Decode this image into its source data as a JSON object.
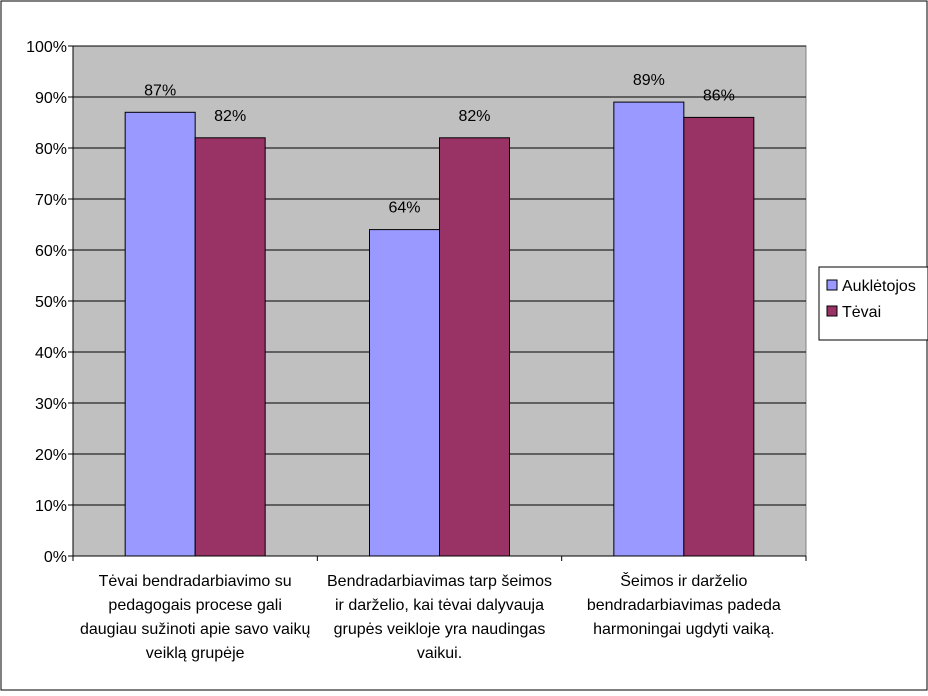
{
  "chart_data": {
    "type": "bar",
    "title": "",
    "xlabel": "",
    "ylabel": "",
    "ylim": [
      0,
      100
    ],
    "y_ticks": [
      "0%",
      "10%",
      "20%",
      "30%",
      "40%",
      "50%",
      "60%",
      "70%",
      "80%",
      "90%",
      "100%"
    ],
    "grid": true,
    "legend_position": "right",
    "categories": [
      [
        "Tėvai bendradarbiavimo su",
        "pedagogais procese gali",
        "daugiau sužinoti apie savo vaikų",
        "veiklą grupėje"
      ],
      [
        "Bendradarbiavimas tarp šeimos",
        "ir darželio, kai tėvai dalyvauja",
        "grupės veikloje yra naudingas",
        "vaikui."
      ],
      [
        "Šeimos ir darželio",
        "bendradarbiavimas padeda",
        "harmoningai ugdyti vaiką."
      ]
    ],
    "series": [
      {
        "name": "Auklėtojos",
        "values": [
          87,
          64,
          89
        ],
        "labels": [
          "87%",
          "64%",
          "89%"
        ],
        "color": "#9999ff"
      },
      {
        "name": "Tėvai",
        "values": [
          82,
          82,
          86
        ],
        "labels": [
          "82%",
          "82%",
          "86%"
        ],
        "color": "#993366"
      }
    ],
    "plot_background": "#c0c0c0"
  }
}
